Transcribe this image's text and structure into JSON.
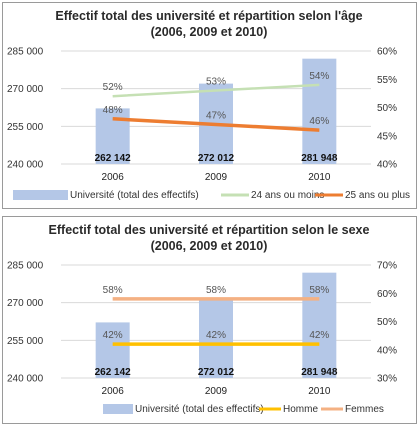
{
  "chart_data": [
    {
      "type": "bar",
      "title": "Effectif total des université et répartition selon l'âge",
      "subtitle": "(2006, 2009 et 2010)",
      "categories": [
        "2006",
        "2009",
        "2010"
      ],
      "y_left": {
        "ylim": [
          240000,
          285000
        ],
        "ticks": [
          "240 000",
          "255 000",
          "270 000",
          "285 000"
        ],
        "tick_values": [
          240000,
          255000,
          270000,
          285000
        ]
      },
      "y_right": {
        "ylim": [
          40,
          60
        ],
        "ticks": [
          "40%",
          "45%",
          "50%",
          "55%",
          "60%"
        ],
        "tick_values": [
          40,
          45,
          50,
          55,
          60
        ]
      },
      "bars": {
        "name": "Université (total des effectifs)",
        "values": [
          262142,
          272012,
          281948
        ],
        "labels": [
          "262 142",
          "272 012",
          "281 948"
        ],
        "color": "#b4c7e7"
      },
      "lines": [
        {
          "name": "24 ans ou moins",
          "values": [
            52,
            53,
            54
          ],
          "labels": [
            "52%",
            "53%",
            "54%"
          ],
          "color": "#c5e0b4"
        },
        {
          "name": "25 ans ou plus",
          "values": [
            48,
            47,
            46
          ],
          "labels": [
            "48%",
            "47%",
            "46%"
          ],
          "color": "#ed7d31"
        }
      ],
      "legend_position": "bottom"
    },
    {
      "type": "bar",
      "title": "Effectif total des université et répartition selon le sexe",
      "subtitle": "(2006, 2009 et 2010)",
      "categories": [
        "2006",
        "2009",
        "2010"
      ],
      "y_left": {
        "ylim": [
          240000,
          285000
        ],
        "ticks": [
          "240 000",
          "255 000",
          "270 000",
          "285 000"
        ],
        "tick_values": [
          240000,
          255000,
          270000,
          285000
        ]
      },
      "y_right": {
        "ylim": [
          30,
          70
        ],
        "ticks": [
          "30%",
          "40%",
          "50%",
          "60%",
          "70%"
        ],
        "tick_values": [
          30,
          40,
          50,
          60,
          70
        ]
      },
      "bars": {
        "name": "Université (total des effectifs)",
        "values": [
          262142,
          272012,
          281948
        ],
        "labels": [
          "262 142",
          "272 012",
          "281 948"
        ],
        "color": "#b4c7e7"
      },
      "lines": [
        {
          "name": "Homme",
          "values": [
            42,
            42,
            42
          ],
          "labels": [
            "42%",
            "42%",
            "42%"
          ],
          "color": "#ffc000"
        },
        {
          "name": "Femmes",
          "values": [
            58,
            58,
            58
          ],
          "labels": [
            "58%",
            "58%",
            "58%"
          ],
          "color": "#f4b183"
        }
      ],
      "legend_position": "bottom"
    }
  ]
}
